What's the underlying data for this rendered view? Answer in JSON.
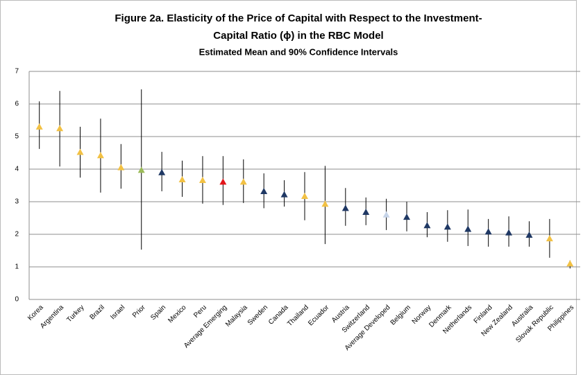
{
  "chart_data": {
    "type": "errorbar",
    "title": [
      "Figure 2a. Elasticity of the Price of Capital with Respect to the Investment-",
      "Capital Ratio (ϕ) in the RBC Model"
    ],
    "subtitle": "Estimated Mean and 90% Confidence Intervals",
    "categories": [
      "Korea",
      "Argentina",
      "Turkey",
      "Brazil",
      "Israel",
      "Prior",
      "Spain",
      "Mexico",
      "Peru",
      "Average Emerging",
      "Malaysia",
      "Sweden",
      "Canada",
      "Thailand",
      "Ecuador",
      "Austria",
      "Switzerland",
      "Average Developed",
      "Belgium",
      "Norway",
      "Denmark",
      "Netherlands",
      "Finland",
      "New Zealand",
      "Australia",
      "Slovak Republic",
      "Philippines"
    ],
    "values": [
      5.3,
      5.25,
      4.52,
      4.42,
      4.05,
      3.97,
      3.9,
      3.68,
      3.66,
      3.61,
      3.61,
      3.32,
      3.22,
      3.17,
      2.93,
      2.8,
      2.68,
      2.6,
      2.53,
      2.27,
      2.23,
      2.16,
      2.08,
      2.05,
      1.98,
      1.87,
      1.1
    ],
    "lower": [
      4.62,
      4.08,
      3.74,
      3.28,
      3.4,
      1.53,
      3.32,
      3.15,
      2.94,
      2.9,
      2.96,
      2.8,
      2.85,
      2.43,
      1.7,
      2.26,
      2.28,
      2.13,
      2.09,
      1.91,
      1.77,
      1.64,
      1.62,
      1.62,
      1.62,
      1.28,
      0.95
    ],
    "upper": [
      6.08,
      6.4,
      5.3,
      5.55,
      4.77,
      6.45,
      4.53,
      4.26,
      4.4,
      4.4,
      4.3,
      3.87,
      3.66,
      3.91,
      4.1,
      3.42,
      3.13,
      3.09,
      3.0,
      2.68,
      2.74,
      2.76,
      2.47,
      2.55,
      2.4,
      2.47,
      1.2
    ],
    "colors": [
      "#f2c144",
      "#f2c144",
      "#f2c144",
      "#f2c144",
      "#f2c144",
      "#9bbb59",
      "#1f3864",
      "#f2c144",
      "#f2c144",
      "#e3151a",
      "#f2c144",
      "#1f3864",
      "#1f3864",
      "#f2c144",
      "#f2c144",
      "#1f3864",
      "#1f3864",
      "#c6d4e8",
      "#1f3864",
      "#1f3864",
      "#1f3864",
      "#1f3864",
      "#1f3864",
      "#1f3864",
      "#1f3864",
      "#f2c144",
      "#f2c144"
    ],
    "ylim": [
      0,
      7
    ],
    "yticks": [
      0,
      1,
      2,
      3,
      4,
      5,
      6,
      7
    ],
    "grid": true
  }
}
